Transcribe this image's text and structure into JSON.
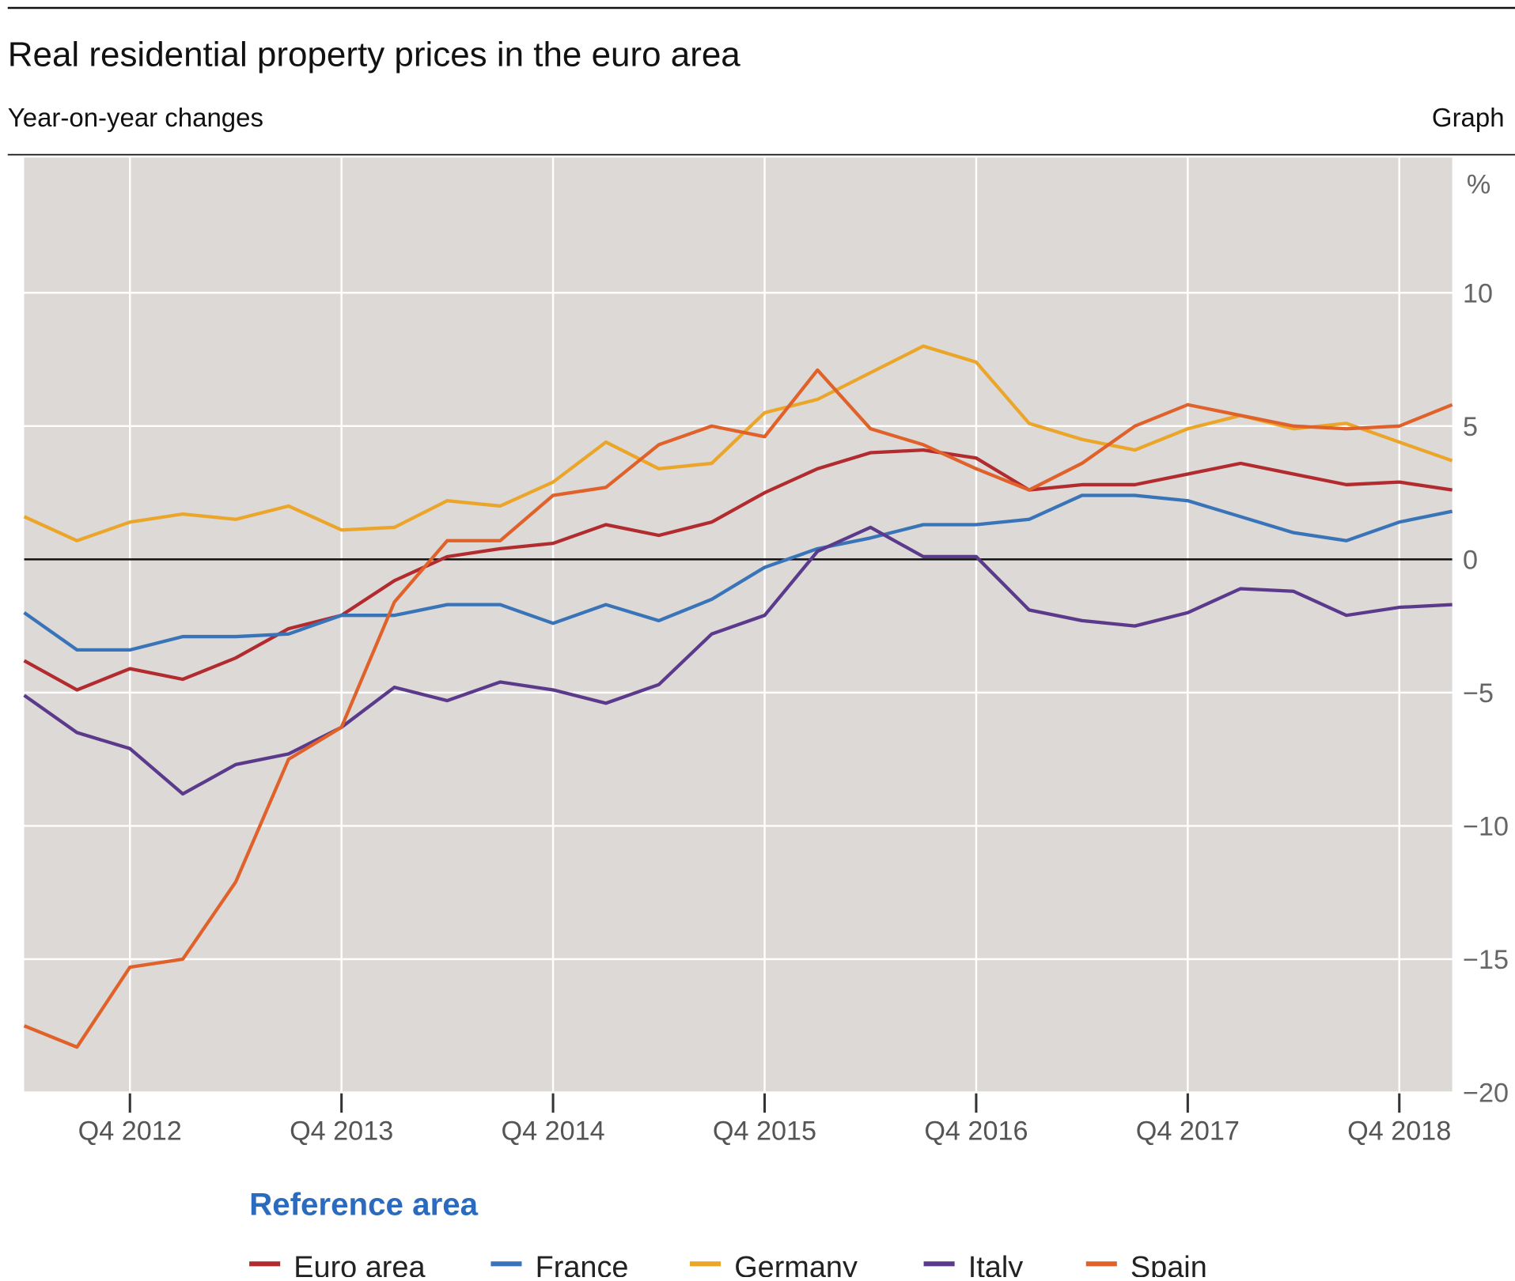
{
  "header": {
    "title": "Real residential property prices in the euro area",
    "subtitle": "Year-on-year changes",
    "label": "Graph"
  },
  "chart_data": {
    "type": "line",
    "title": "Real residential property prices in the euro area",
    "subtitle": "Year-on-year changes",
    "xlabel": "",
    "ylabel": "%",
    "y_axis_side": "right",
    "ylim": [
      -20,
      15
    ],
    "yticks": [
      10,
      5,
      0,
      -5,
      -10,
      -15,
      -20
    ],
    "ytick_labels": [
      "10",
      "5",
      "0",
      "−5",
      "−10",
      "−15",
      "−20"
    ],
    "x": [
      "Q2 2012",
      "Q3 2012",
      "Q4 2012",
      "Q1 2013",
      "Q2 2013",
      "Q3 2013",
      "Q4 2013",
      "Q1 2014",
      "Q2 2014",
      "Q3 2014",
      "Q4 2014",
      "Q1 2015",
      "Q2 2015",
      "Q3 2015",
      "Q4 2015",
      "Q1 2016",
      "Q2 2016",
      "Q3 2016",
      "Q4 2016",
      "Q1 2017",
      "Q2 2017",
      "Q3 2017",
      "Q4 2017",
      "Q1 2018",
      "Q2 2018",
      "Q3 2018",
      "Q4 2018",
      "Q1 2019"
    ],
    "xtick_labels": [
      "Q4 2012",
      "Q4 2013",
      "Q4 2014",
      "Q4 2015",
      "Q4 2016",
      "Q4 2017",
      "Q4 2018"
    ],
    "grid": true,
    "zero_line": true,
    "legend_title": "Reference area",
    "legend_position": "bottom",
    "legend_title_color": "#2a6bbf",
    "plot_background": "#dcd9d7",
    "series": [
      {
        "name": "Euro area",
        "color": "#b22b2e",
        "values": [
          -3.8,
          -4.9,
          -4.1,
          -4.5,
          -3.7,
          -2.6,
          -2.1,
          -0.8,
          0.1,
          0.4,
          0.6,
          1.3,
          0.9,
          1.4,
          2.5,
          3.4,
          4.0,
          4.1,
          3.8,
          2.6,
          2.8,
          2.8,
          3.2,
          3.6,
          3.2,
          2.8,
          2.9,
          2.6
        ]
      },
      {
        "name": "France",
        "color": "#3a74b8",
        "values": [
          -2.0,
          -3.4,
          -3.4,
          -2.9,
          -2.9,
          -2.8,
          -2.1,
          -2.1,
          -1.7,
          -1.7,
          -2.4,
          -1.7,
          -2.3,
          -1.5,
          -0.3,
          0.4,
          0.8,
          1.3,
          1.3,
          1.5,
          2.4,
          2.4,
          2.2,
          1.6,
          1.0,
          0.7,
          1.4,
          1.8
        ]
      },
      {
        "name": "Germany",
        "color": "#eba62a",
        "values": [
          1.6,
          0.7,
          1.4,
          1.7,
          1.5,
          2.0,
          1.1,
          1.2,
          2.2,
          2.0,
          2.9,
          4.4,
          3.4,
          3.6,
          5.5,
          6.0,
          7.0,
          8.0,
          7.4,
          5.1,
          4.5,
          4.1,
          4.9,
          5.4,
          4.9,
          5.1,
          4.4,
          3.7
        ]
      },
      {
        "name": "Italy",
        "color": "#5b3a8c",
        "values": [
          -5.1,
          -6.5,
          -7.1,
          -8.8,
          -7.7,
          -7.3,
          -6.3,
          -4.8,
          -5.3,
          -4.6,
          -4.9,
          -5.4,
          -4.7,
          -2.8,
          -2.1,
          0.3,
          1.2,
          0.1,
          0.1,
          -1.9,
          -2.3,
          -2.5,
          -2.0,
          -1.1,
          -1.2,
          -2.1,
          -1.8,
          -1.7
        ]
      },
      {
        "name": "Spain",
        "color": "#e0622a",
        "values": [
          -17.5,
          -18.3,
          -15.3,
          -15.0,
          -12.1,
          -7.5,
          -6.3,
          -1.6,
          0.7,
          0.7,
          2.4,
          2.7,
          4.3,
          5.0,
          4.6,
          7.1,
          4.9,
          4.3,
          3.4,
          2.6,
          3.6,
          5.0,
          5.8,
          5.4,
          5.0,
          4.9,
          5.0,
          5.8
        ]
      }
    ]
  }
}
